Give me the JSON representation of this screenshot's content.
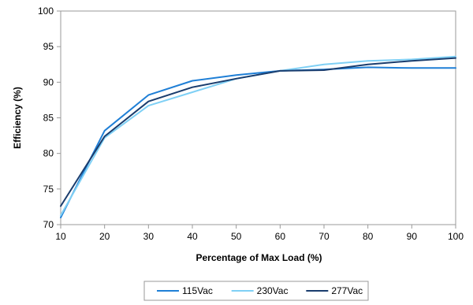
{
  "chart_data": {
    "type": "line",
    "xlabel": "Percentage of Max Load (%)",
    "ylabel": "Efficiency  (%)",
    "xlim": [
      10,
      100
    ],
    "ylim": [
      70,
      100
    ],
    "x_ticks": [
      10,
      20,
      30,
      40,
      50,
      60,
      70,
      80,
      90,
      100
    ],
    "y_ticks": [
      70,
      75,
      80,
      85,
      90,
      95,
      100
    ],
    "grid": false,
    "legend_position": "bottom",
    "x": [
      10,
      20,
      30,
      40,
      50,
      60,
      70,
      80,
      90,
      100
    ],
    "series": [
      {
        "name": "115Vac",
        "color": "#1f7fd6",
        "values": [
          71.0,
          83.2,
          88.2,
          90.2,
          91.0,
          91.6,
          91.8,
          92.1,
          92.0,
          92.0
        ]
      },
      {
        "name": "230Vac",
        "color": "#7fd0f5",
        "values": [
          71.3,
          82.2,
          86.7,
          88.6,
          90.5,
          91.6,
          92.5,
          93.0,
          93.2,
          93.6
        ]
      },
      {
        "name": "277Vac",
        "color": "#1a3d6e",
        "values": [
          72.6,
          82.4,
          87.3,
          89.3,
          90.5,
          91.6,
          91.7,
          92.5,
          93.0,
          93.4
        ]
      }
    ]
  }
}
